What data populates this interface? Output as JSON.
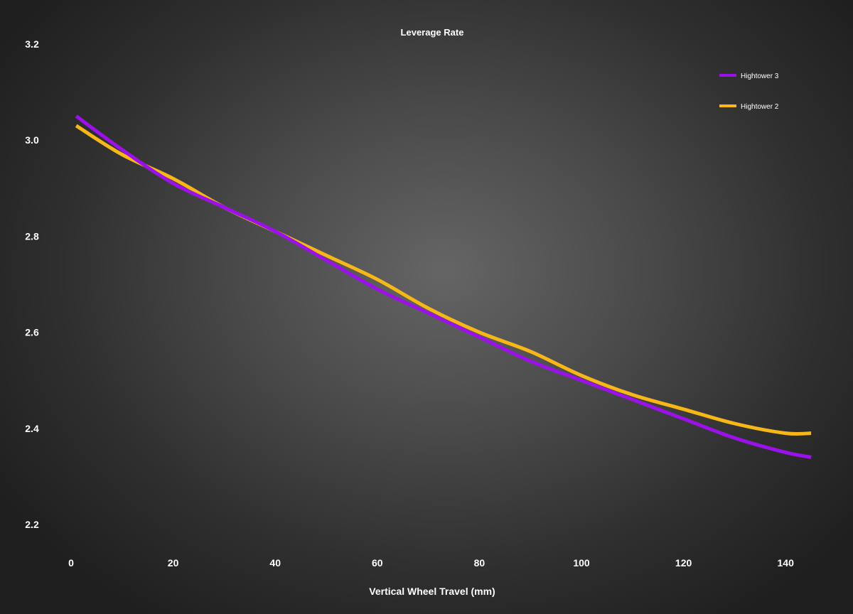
{
  "chart_data": {
    "type": "line",
    "title": "Leverage Rate",
    "xlabel": "Vertical Wheel Travel (mm)",
    "ylabel": "",
    "xlim": [
      0,
      145
    ],
    "ylim": [
      2.2,
      3.2
    ],
    "xticks": [
      0,
      20,
      40,
      60,
      80,
      100,
      120,
      140
    ],
    "yticks": [
      2.2,
      2.4,
      2.6,
      2.8,
      3.0,
      3.2
    ],
    "ytick_labels": [
      "2.2",
      "2.4",
      "2.6",
      "2.8",
      "3.0",
      "3.2"
    ],
    "grid": false,
    "legend_position": "top-right",
    "series": [
      {
        "name": "Hightower 3",
        "color": "#9b12e8",
        "x": [
          1,
          10,
          20,
          30,
          40,
          50,
          60,
          70,
          80,
          90,
          100,
          110,
          120,
          130,
          140,
          145
        ],
        "y": [
          3.05,
          2.98,
          2.91,
          2.86,
          2.81,
          2.75,
          2.69,
          2.64,
          2.59,
          2.54,
          2.5,
          2.46,
          2.42,
          2.38,
          2.35,
          2.34
        ]
      },
      {
        "name": "Hightower 2",
        "color": "#f7b718",
        "x": [
          1,
          10,
          20,
          30,
          40,
          50,
          60,
          70,
          80,
          90,
          100,
          110,
          120,
          130,
          140,
          145
        ],
        "y": [
          3.03,
          2.97,
          2.92,
          2.86,
          2.81,
          2.76,
          2.71,
          2.65,
          2.6,
          2.56,
          2.51,
          2.47,
          2.44,
          2.41,
          2.39,
          2.39
        ]
      }
    ]
  }
}
